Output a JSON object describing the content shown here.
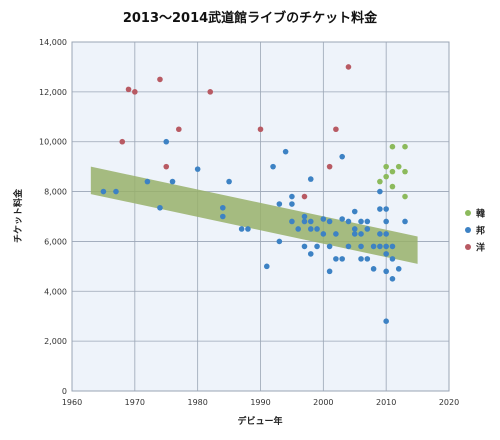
{
  "chart_data": {
    "type": "scatter",
    "title": "2013～2014武道館ライブのチケット料金",
    "xlabel": "デビュー年",
    "ylabel": "チケット料金",
    "xlim": [
      1960,
      2020
    ],
    "ylim": [
      0,
      14000
    ],
    "x_ticks": [
      "1960",
      "1970",
      "1980",
      "1990",
      "2000",
      "2010",
      "2020"
    ],
    "y_ticks": [
      "0",
      "2,000",
      "4,000",
      "6,000",
      "8,000",
      "10,000",
      "12,000",
      "14,000"
    ],
    "grid": true,
    "legend_position": "right",
    "trend_band": {
      "x": [
        1963,
        2015
      ],
      "center": [
        8450,
        5650
      ],
      "half_width": 550,
      "color": "#98b06a"
    },
    "series": [
      {
        "name": "韓",
        "color": "#8cba5c",
        "points": [
          [
            2009,
            8400
          ],
          [
            2010,
            8600
          ],
          [
            2010,
            9000
          ],
          [
            2011,
            9800
          ],
          [
            2011,
            8800
          ],
          [
            2011,
            8200
          ],
          [
            2013,
            9800
          ],
          [
            2013,
            8800
          ],
          [
            2013,
            7800
          ],
          [
            2012,
            9000
          ]
        ]
      },
      {
        "name": "邦",
        "color": "#3d82c4",
        "points": [
          [
            1965,
            8000
          ],
          [
            1967,
            8000
          ],
          [
            1972,
            8400
          ],
          [
            1974,
            7350
          ],
          [
            1975,
            10000
          ],
          [
            1976,
            8400
          ],
          [
            1980,
            8900
          ],
          [
            1984,
            7000
          ],
          [
            1984,
            7350
          ],
          [
            1985,
            8400
          ],
          [
            1987,
            6500
          ],
          [
            1988,
            6500
          ],
          [
            1991,
            5000
          ],
          [
            1992,
            9000
          ],
          [
            1993,
            6000
          ],
          [
            1993,
            7500
          ],
          [
            1994,
            9600
          ],
          [
            1995,
            7500
          ],
          [
            1995,
            7800
          ],
          [
            1995,
            6800
          ],
          [
            1996,
            6500
          ],
          [
            1997,
            5800
          ],
          [
            1997,
            6800
          ],
          [
            1997,
            7000
          ],
          [
            1998,
            5500
          ],
          [
            1998,
            6500
          ],
          [
            1998,
            6800
          ],
          [
            1998,
            8500
          ],
          [
            1999,
            5800
          ],
          [
            1999,
            6500
          ],
          [
            2000,
            6300
          ],
          [
            2000,
            6900
          ],
          [
            2001,
            4800
          ],
          [
            2001,
            6800
          ],
          [
            2001,
            5800
          ],
          [
            2002,
            6300
          ],
          [
            2002,
            5300
          ],
          [
            2003,
            5300
          ],
          [
            2003,
            6900
          ],
          [
            2003,
            9400
          ],
          [
            2004,
            5800
          ],
          [
            2004,
            6800
          ],
          [
            2005,
            7200
          ],
          [
            2005,
            6500
          ],
          [
            2005,
            6300
          ],
          [
            2006,
            6300
          ],
          [
            2006,
            5300
          ],
          [
            2006,
            5800
          ],
          [
            2006,
            6800
          ],
          [
            2007,
            5300
          ],
          [
            2007,
            6500
          ],
          [
            2007,
            6800
          ],
          [
            2008,
            4900
          ],
          [
            2008,
            5800
          ],
          [
            2009,
            5800
          ],
          [
            2009,
            6300
          ],
          [
            2009,
            7300
          ],
          [
            2009,
            8000
          ],
          [
            2010,
            2800
          ],
          [
            2010,
            4800
          ],
          [
            2010,
            5800
          ],
          [
            2010,
            6300
          ],
          [
            2010,
            6800
          ],
          [
            2010,
            7300
          ],
          [
            2011,
            4500
          ],
          [
            2011,
            5800
          ],
          [
            2012,
            4900
          ],
          [
            2013,
            6800
          ],
          [
            2011,
            5300
          ],
          [
            2010,
            5500
          ]
        ]
      },
      {
        "name": "洋",
        "color": "#b85a63",
        "points": [
          [
            1968,
            10000
          ],
          [
            1969,
            12100
          ],
          [
            1970,
            12000
          ],
          [
            1974,
            12500
          ],
          [
            1975,
            9000
          ],
          [
            1977,
            10500
          ],
          [
            1982,
            12000
          ],
          [
            1990,
            10500
          ],
          [
            1997,
            7800
          ],
          [
            2001,
            9000
          ],
          [
            2002,
            10500
          ],
          [
            2004,
            13000
          ]
        ]
      }
    ]
  }
}
